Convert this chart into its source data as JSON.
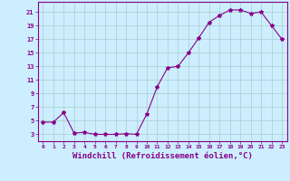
{
  "x": [
    0,
    1,
    2,
    3,
    4,
    5,
    6,
    7,
    8,
    9,
    10,
    11,
    12,
    13,
    14,
    15,
    16,
    17,
    18,
    19,
    20,
    21,
    22,
    23
  ],
  "y": [
    4.8,
    4.8,
    6.2,
    3.2,
    3.3,
    3.0,
    3.0,
    3.0,
    3.1,
    3.0,
    6.0,
    10.0,
    12.8,
    13.0,
    15.0,
    17.2,
    19.5,
    20.5,
    21.3,
    21.3,
    20.8,
    21.0,
    19.0,
    17.0
  ],
  "line_color": "#880088",
  "marker": "*",
  "marker_size": 3,
  "bg_color": "#cceeff",
  "grid_color": "#aacccc",
  "axis_color": "#880088",
  "xlabel": "Windchill (Refroidissement éolien,°C)",
  "xlabel_fontsize": 6.5,
  "ylabel_ticks": [
    3,
    5,
    7,
    9,
    11,
    13,
    15,
    17,
    19,
    21
  ],
  "xlim": [
    -0.5,
    23.5
  ],
  "ylim": [
    2.0,
    22.5
  ],
  "xtick_labels": [
    "0",
    "1",
    "2",
    "3",
    "4",
    "5",
    "6",
    "7",
    "8",
    "9",
    "10",
    "11",
    "12",
    "13",
    "14",
    "15",
    "16",
    "17",
    "18",
    "19",
    "20",
    "21",
    "22",
    "23"
  ],
  "line_width": 0.8
}
